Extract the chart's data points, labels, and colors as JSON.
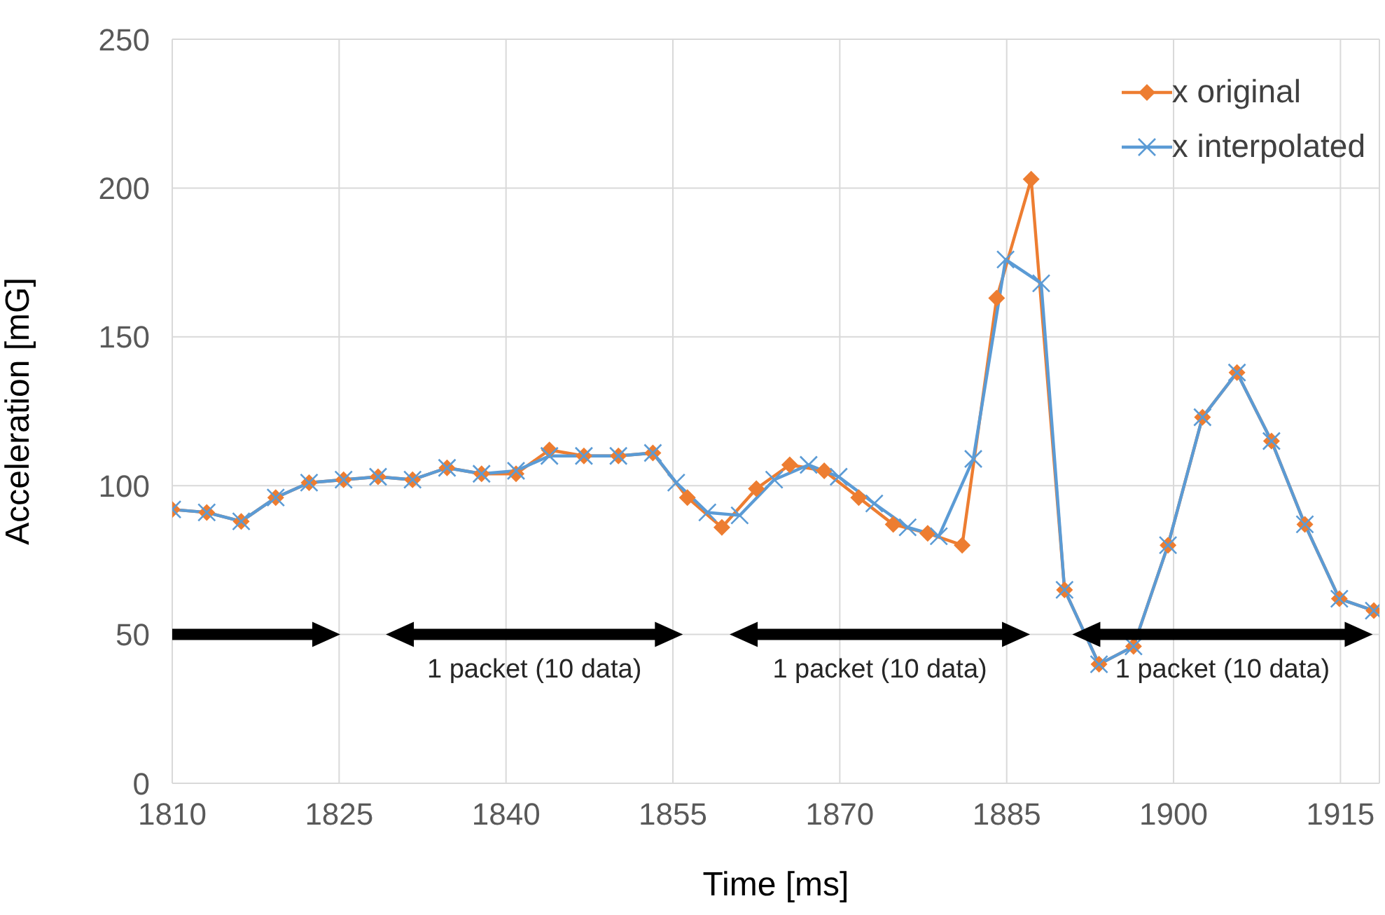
{
  "chart_data": {
    "type": "line",
    "xlabel": "Time [ms]",
    "ylabel": "Acceleration [mG]",
    "xlim": [
      1810,
      1918.5
    ],
    "xticks": [
      1810,
      1825,
      1840,
      1855,
      1870,
      1885,
      1900,
      1915
    ],
    "ylim": [
      0,
      250
    ],
    "yticks": [
      0,
      50,
      100,
      150,
      200,
      250
    ],
    "grid": true,
    "legend": "top right",
    "line_style": "solid",
    "series": [
      {
        "name": "x original",
        "color": "#ed7d31",
        "marker": "diamond",
        "x": [
          1810,
          1813.1,
          1816.2,
          1819.3,
          1822.3,
          1825.4,
          1828.5,
          1831.6,
          1834.7,
          1837.8,
          1840.9,
          1843.9,
          1847.0,
          1850.1,
          1853.2,
          1856.3,
          1859.4,
          1862.5,
          1865.5,
          1868.6,
          1871.7,
          1874.8,
          1877.9,
          1881.0,
          1884.1,
          1887.2,
          1890.2,
          1893.3,
          1896.4,
          1899.5,
          1902.6,
          1905.7,
          1908.8,
          1911.8,
          1914.9,
          1918.0
        ],
        "values": [
          92,
          91,
          88,
          96,
          101,
          102,
          103,
          102,
          106,
          104,
          104,
          112,
          110,
          110,
          111,
          96,
          86,
          99,
          107,
          105,
          96,
          87,
          84,
          80,
          163,
          203,
          65,
          40,
          46,
          80,
          123,
          138,
          115,
          87,
          62,
          58
        ]
      },
      {
        "name": "x interpolated",
        "color": "#5b9bd5",
        "marker": "cross",
        "x": [
          1810,
          1813.1,
          1816.2,
          1819.3,
          1822.3,
          1825.4,
          1828.5,
          1831.6,
          1834.7,
          1837.8,
          1840.9,
          1843.9,
          1847.0,
          1850.1,
          1853.2,
          1855.3,
          1858.1,
          1861.0,
          1864.1,
          1867.2,
          1869.9,
          1873.1,
          1876.1,
          1878.9,
          1882.0,
          1884.9,
          1888.1,
          1890.2,
          1893.3,
          1896.4,
          1899.5,
          1902.6,
          1905.7,
          1908.8,
          1911.8,
          1914.9,
          1918.0
        ],
        "values": [
          92,
          91,
          88,
          96,
          101,
          102,
          103,
          102,
          106,
          104,
          105,
          110,
          110,
          110,
          111,
          101,
          91,
          90,
          102,
          107,
          103,
          94,
          86,
          83,
          109,
          176,
          168,
          65,
          40,
          46,
          80,
          123,
          138,
          115,
          87,
          62,
          58
        ]
      }
    ],
    "annotations": [
      "1 packet (10 data)",
      "1 packet (10 data)",
      "1 packet (10 data)"
    ]
  }
}
